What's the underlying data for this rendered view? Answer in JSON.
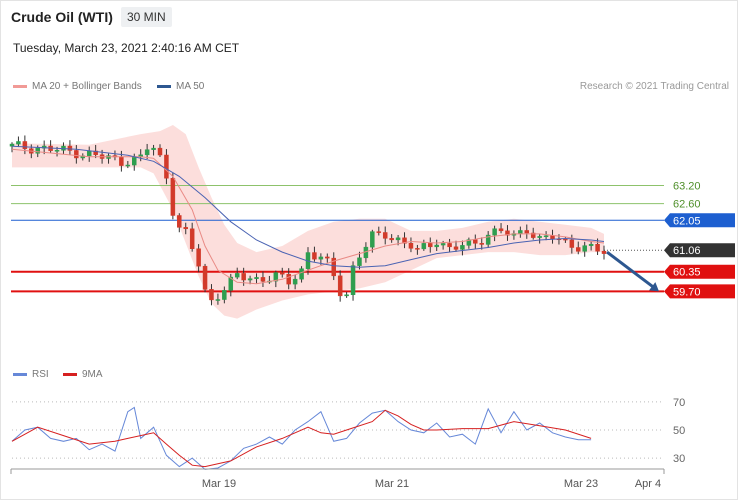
{
  "header": {
    "title": "Crude Oil (WTI)",
    "timeframe": "30 MIN",
    "timestamp": "Tuesday, March 23, 2021 2:40:16 AM CET",
    "copyright": "Research © 2021 Trading Central"
  },
  "legend": {
    "ma20": "MA 20 + Bollinger Bands",
    "ma50": "MA 50",
    "rsi": "RSI",
    "ma9": "9MA"
  },
  "colors": {
    "bull": "#2e9e4f",
    "bear": "#d23a2a",
    "band": "#fcd8d6",
    "ma20": "#e98a85",
    "ma50": "#4a63b3",
    "pivot": "#1d5fd0",
    "resistance": "#8dc26b",
    "support": "#e01010",
    "last": "#333333",
    "arrow": "#2d5790",
    "rsi": "#6688d8",
    "rsi_ma": "#d62020"
  },
  "chart_data": [
    {
      "type": "candlestick",
      "title": "Crude Oil (WTI)",
      "interval": "30 MIN",
      "ylim": [
        57.2,
        65.3
      ],
      "x_ticks": [
        "Mar 19",
        "Mar 21",
        "Mar 23",
        "Apr 4"
      ],
      "levels": [
        {
          "label": "63.20",
          "value": 63.2,
          "kind": "resistance"
        },
        {
          "label": "62.60",
          "value": 62.6,
          "kind": "resistance"
        },
        {
          "label": "62.05",
          "value": 62.05,
          "kind": "pivot"
        },
        {
          "label": "61.06",
          "value": 61.06,
          "kind": "last"
        },
        {
          "label": "60.35",
          "value": 60.35,
          "kind": "support"
        },
        {
          "label": "59.70",
          "value": 59.7,
          "kind": "support"
        }
      ],
      "arrow": {
        "from": 61.0,
        "to": 59.8,
        "direction": "down"
      },
      "close_path": [
        [
          0,
          64.5
        ],
        [
          6,
          64.4
        ],
        [
          10,
          64.3
        ],
        [
          14,
          64.15
        ],
        [
          17,
          64.0
        ],
        [
          20,
          64.1
        ],
        [
          21.5,
          64.6
        ],
        [
          23,
          64.1
        ],
        [
          24,
          63.5
        ],
        [
          25,
          62.4
        ],
        [
          26,
          61.8
        ],
        [
          27,
          61.6
        ],
        [
          28,
          61.1
        ],
        [
          29,
          60.6
        ],
        [
          30,
          59.7
        ],
        [
          31,
          59.4
        ],
        [
          33,
          59.8
        ],
        [
          35,
          60.2
        ],
        [
          38,
          60.1
        ],
        [
          41,
          60.2
        ],
        [
          43,
          60.0
        ],
        [
          45,
          60.4
        ],
        [
          46,
          61.0
        ],
        [
          48,
          60.8
        ],
        [
          49,
          60.6
        ],
        [
          50,
          60.2
        ],
        [
          51,
          59.7
        ],
        [
          52,
          59.6
        ],
        [
          53,
          60.5
        ],
        [
          54,
          60.9
        ],
        [
          56,
          61.5
        ],
        [
          58,
          61.6
        ],
        [
          60,
          61.4
        ],
        [
          62,
          61.2
        ],
        [
          63,
          61.0
        ],
        [
          66,
          61.4
        ],
        [
          68,
          61.1
        ],
        [
          70,
          61.2
        ],
        [
          72,
          61.3
        ],
        [
          74,
          61.6
        ],
        [
          76,
          61.7
        ],
        [
          78,
          61.5
        ],
        [
          80,
          61.8
        ],
        [
          82,
          61.4
        ],
        [
          84,
          61.5
        ],
        [
          86,
          61.3
        ],
        [
          88,
          61.2
        ],
        [
          90,
          61.1
        ],
        [
          92,
          61.0
        ]
      ],
      "series": [
        {
          "name": "MA 20",
          "values": [
            [
              0,
              64.4
            ],
            [
              12,
              64.15
            ],
            [
              20,
              64.15
            ],
            [
              22,
              64.1
            ],
            [
              25,
              63.5
            ],
            [
              28,
              62.4
            ],
            [
              30,
              61.2
            ],
            [
              32,
              60.4
            ],
            [
              35,
              60.0
            ],
            [
              38,
              59.95
            ],
            [
              42,
              60.1
            ],
            [
              46,
              60.4
            ],
            [
              50,
              60.7
            ],
            [
              54,
              60.95
            ],
            [
              58,
              61.2
            ],
            [
              62,
              61.35
            ],
            [
              66,
              61.3
            ],
            [
              70,
              61.35
            ],
            [
              74,
              61.5
            ],
            [
              78,
              61.6
            ],
            [
              82,
              61.6
            ],
            [
              86,
              61.5
            ],
            [
              90,
              61.35
            ],
            [
              92,
              61.3
            ]
          ]
        },
        {
          "name": "MA 50",
          "values": [
            [
              0,
              64.5
            ],
            [
              10,
              64.4
            ],
            [
              18,
              64.2
            ],
            [
              22,
              64.0
            ],
            [
              26,
              63.5
            ],
            [
              30,
              62.8
            ],
            [
              34,
              62.0
            ],
            [
              38,
              61.4
            ],
            [
              42,
              61.0
            ],
            [
              46,
              60.7
            ],
            [
              50,
              60.55
            ],
            [
              54,
              60.5
            ],
            [
              58,
              60.55
            ],
            [
              62,
              60.75
            ],
            [
              66,
              60.95
            ],
            [
              70,
              61.05
            ],
            [
              74,
              61.15
            ],
            [
              78,
              61.3
            ],
            [
              82,
              61.4
            ],
            [
              86,
              61.45
            ],
            [
              90,
              61.4
            ],
            [
              92,
              61.35
            ]
          ]
        },
        {
          "name": "Bollinger Upper",
          "values": [
            [
              0,
              64.6
            ],
            [
              12,
              64.55
            ],
            [
              20,
              64.9
            ],
            [
              23,
              65.0
            ],
            [
              25,
              65.2
            ],
            [
              27,
              64.9
            ],
            [
              29,
              63.8
            ],
            [
              31,
              62.8
            ],
            [
              33,
              61.9
            ],
            [
              35,
              61.3
            ],
            [
              38,
              61.0
            ],
            [
              42,
              61.2
            ],
            [
              46,
              61.7
            ],
            [
              50,
              62.0
            ],
            [
              54,
              62.1
            ],
            [
              58,
              62.1
            ],
            [
              62,
              61.7
            ],
            [
              66,
              61.7
            ],
            [
              70,
              61.8
            ],
            [
              74,
              62.0
            ],
            [
              78,
              62.1
            ],
            [
              82,
              62.0
            ],
            [
              86,
              61.9
            ],
            [
              90,
              61.8
            ],
            [
              92,
              61.6
            ]
          ]
        },
        {
          "name": "Bollinger Lower",
          "values": [
            [
              0,
              63.8
            ],
            [
              12,
              63.8
            ],
            [
              20,
              63.8
            ],
            [
              22,
              63.6
            ],
            [
              25,
              62.4
            ],
            [
              27,
              61.3
            ],
            [
              29,
              60.2
            ],
            [
              31,
              59.3
            ],
            [
              33,
              58.9
            ],
            [
              35,
              58.8
            ],
            [
              38,
              59.1
            ],
            [
              42,
              59.4
            ],
            [
              46,
              59.6
            ],
            [
              50,
              59.7
            ],
            [
              54,
              59.8
            ],
            [
              58,
              60.0
            ],
            [
              62,
              60.4
            ],
            [
              66,
              60.8
            ],
            [
              70,
              60.9
            ],
            [
              74,
              61.0
            ],
            [
              78,
              61.0
            ],
            [
              82,
              60.9
            ],
            [
              86,
              60.9
            ],
            [
              90,
              61.0
            ],
            [
              92,
              61.0
            ]
          ]
        }
      ]
    },
    {
      "type": "line",
      "title": "RSI",
      "ylim": [
        18,
        82
      ],
      "yticks": [
        70,
        50,
        30
      ],
      "series": [
        {
          "name": "RSI",
          "values": [
            [
              0,
              42
            ],
            [
              2,
              50
            ],
            [
              4,
              52
            ],
            [
              6,
              44
            ],
            [
              8,
              42
            ],
            [
              10,
              44
            ],
            [
              12,
              36
            ],
            [
              14,
              40
            ],
            [
              16,
              35
            ],
            [
              18,
              63
            ],
            [
              19,
              66
            ],
            [
              20,
              44
            ],
            [
              22,
              52
            ],
            [
              24,
              32
            ],
            [
              26,
              24
            ],
            [
              28,
              30
            ],
            [
              30,
              22
            ],
            [
              32,
              23
            ],
            [
              34,
              28
            ],
            [
              36,
              37
            ],
            [
              38,
              40
            ],
            [
              40,
              45
            ],
            [
              42,
              40
            ],
            [
              44,
              50
            ],
            [
              46,
              56
            ],
            [
              48,
              63
            ],
            [
              50,
              42
            ],
            [
              52,
              44
            ],
            [
              54,
              55
            ],
            [
              56,
              62
            ],
            [
              58,
              64
            ],
            [
              60,
              56
            ],
            [
              62,
              50
            ],
            [
              64,
              48
            ],
            [
              66,
              55
            ],
            [
              68,
              45
            ],
            [
              70,
              47
            ],
            [
              72,
              40
            ],
            [
              74,
              65
            ],
            [
              76,
              48
            ],
            [
              78,
              63
            ],
            [
              80,
              50
            ],
            [
              82,
              55
            ],
            [
              84,
              48
            ],
            [
              86,
              45
            ],
            [
              88,
              43
            ],
            [
              90,
              43
            ]
          ]
        },
        {
          "name": "9MA",
          "values": [
            [
              0,
              42
            ],
            [
              4,
              52
            ],
            [
              8,
              46
            ],
            [
              12,
              40
            ],
            [
              16,
              42
            ],
            [
              18,
              44
            ],
            [
              22,
              48
            ],
            [
              24,
              40
            ],
            [
              26,
              32
            ],
            [
              28,
              25
            ],
            [
              30,
              24
            ],
            [
              34,
              28
            ],
            [
              38,
              38
            ],
            [
              42,
              44
            ],
            [
              46,
              52
            ],
            [
              48,
              48
            ],
            [
              50,
              47
            ],
            [
              52,
              50
            ],
            [
              56,
              56
            ],
            [
              58,
              64
            ],
            [
              60,
              60
            ],
            [
              62,
              54
            ],
            [
              64,
              50
            ],
            [
              66,
              50
            ],
            [
              70,
              51
            ],
            [
              74,
              51
            ],
            [
              78,
              56
            ],
            [
              82,
              53
            ],
            [
              86,
              50
            ],
            [
              90,
              44
            ]
          ]
        }
      ]
    }
  ]
}
